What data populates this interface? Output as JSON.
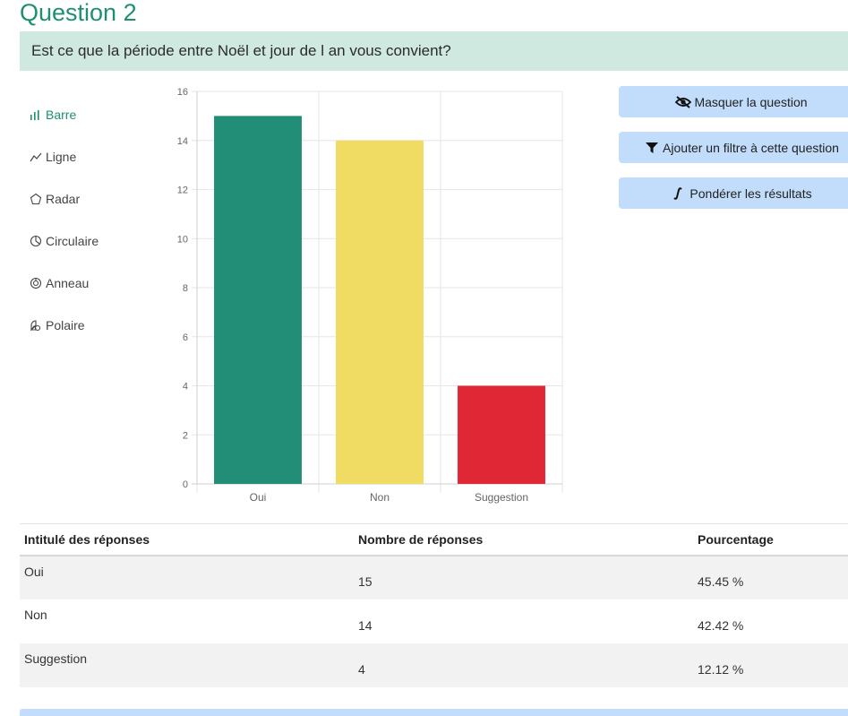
{
  "question": {
    "title": "Question 2",
    "text": "Est ce que la période entre Noël et jour de l an vous convient?"
  },
  "chart_types": [
    {
      "label": "Barre",
      "icon": "bar-chart-icon",
      "active": true
    },
    {
      "label": "Ligne",
      "icon": "line-chart-icon",
      "active": false
    },
    {
      "label": "Radar",
      "icon": "radar-chart-icon",
      "active": false
    },
    {
      "label": "Circulaire",
      "icon": "pie-chart-icon",
      "active": false
    },
    {
      "label": "Anneau",
      "icon": "donut-chart-icon",
      "active": false
    },
    {
      "label": "Polaire",
      "icon": "polar-chart-icon",
      "active": false
    }
  ],
  "actions": {
    "hide_label": "Masquer la question",
    "filter_label": "Ajouter un filtre à cette question",
    "weight_label": "Pondérer les résultats"
  },
  "chart_data": {
    "type": "bar",
    "categories": [
      "Oui",
      "Non",
      "Suggestion"
    ],
    "values": [
      15,
      14,
      4
    ],
    "colors": [
      "#238e78",
      "#f0dc63",
      "#e02735"
    ],
    "ylim": [
      0,
      16
    ],
    "yticks": [
      0,
      2,
      4,
      6,
      8,
      10,
      12,
      14,
      16
    ],
    "grid": true,
    "title": "",
    "xlabel": "",
    "ylabel": ""
  },
  "table": {
    "headers": [
      "Intitulé des réponses",
      "Nombre de réponses",
      "Pourcentage"
    ],
    "rows": [
      [
        "Oui",
        "15",
        "45.45 %"
      ],
      [
        "Non",
        "14",
        "42.42 %"
      ],
      [
        "Suggestion",
        "4",
        "12.12 %"
      ]
    ]
  },
  "colors": {
    "accent": "#1f8f72",
    "banner": "#cfe9e1",
    "button": "#c2dcfb"
  }
}
